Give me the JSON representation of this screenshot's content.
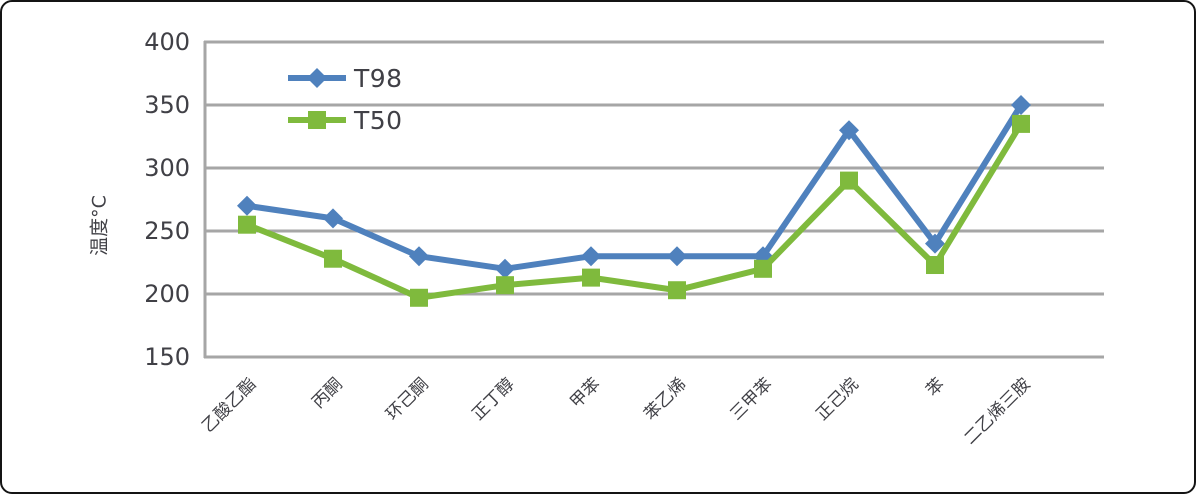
{
  "chart_data": {
    "type": "line",
    "title": "",
    "xlabel": "",
    "ylabel": "温度°C",
    "categories": [
      "乙酸乙酯",
      "丙酮",
      "环己酮",
      "正丁醇",
      "甲苯",
      "苯乙烯",
      "三甲苯",
      "正己烷",
      "苯",
      "二乙烯三胺"
    ],
    "series": [
      {
        "name": "T98",
        "color": "#4f81bd",
        "marker": "diamond",
        "values": [
          270,
          260,
          230,
          220,
          230,
          230,
          230,
          330,
          240,
          350
        ]
      },
      {
        "name": "T50",
        "color": "#7fba3d",
        "marker": "square",
        "values": [
          255,
          228,
          197,
          207,
          213,
          203,
          220,
          290,
          223,
          335
        ]
      }
    ],
    "ylim": [
      150,
      400
    ],
    "yticks": [
      400,
      350,
      300,
      250,
      200,
      150
    ],
    "grid": true,
    "legend_position": "inside-top-left"
  },
  "colors": {
    "grid": "#a6a6a6",
    "axis": "#a6a6a6",
    "text": "#404046",
    "background": "#ffffff",
    "border": "#141414"
  }
}
